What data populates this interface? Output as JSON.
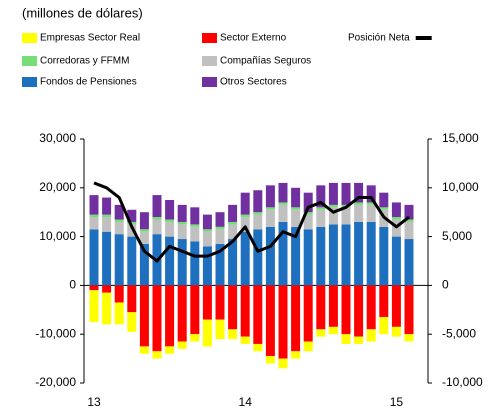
{
  "chart_data": {
    "type": "bar",
    "stacked": true,
    "subtitle": "(millones de dólares)",
    "categories": [
      "13",
      null,
      null,
      null,
      null,
      null,
      null,
      null,
      null,
      null,
      null,
      null,
      "14",
      null,
      null,
      null,
      null,
      null,
      null,
      null,
      null,
      null,
      null,
      null,
      "15",
      null
    ],
    "series": [
      {
        "name": "Empresas Sector Real",
        "color": "#ffff00",
        "values": [
          -6500,
          -6500,
          -4500,
          -4000,
          -1500,
          -1500,
          -1500,
          -1500,
          -1500,
          -5500,
          -4000,
          -2000,
          -1500,
          -1500,
          -1500,
          -2000,
          -1500,
          -2000,
          -1500,
          -1500,
          -2000,
          -1500,
          -2500,
          -3500,
          -2000,
          -1500
        ]
      },
      {
        "name": "Sector Externo",
        "color": "#ff0000",
        "values": [
          -1000,
          -1500,
          -3500,
          -5500,
          -12500,
          -13500,
          -12500,
          -11500,
          -10000,
          -7000,
          -7000,
          -9000,
          -10500,
          -12000,
          -14500,
          -15000,
          -13500,
          -11500,
          -9000,
          -8500,
          -10000,
          -10500,
          -9000,
          -6500,
          -8500,
          -10000
        ]
      },
      {
        "name": "Corredoras y FFMM",
        "color": "#77dd77",
        "values": [
          500,
          500,
          500,
          500,
          500,
          500,
          500,
          500,
          500,
          500,
          500,
          500,
          500,
          500,
          500,
          500,
          500,
          500,
          500,
          500,
          500,
          500,
          500,
          500,
          500,
          500
        ]
      },
      {
        "name": "Compañías Seguros",
        "color": "#c0c0c0",
        "values": [
          2500,
          3000,
          2500,
          2500,
          2500,
          3000,
          3000,
          3000,
          3000,
          3000,
          3000,
          3000,
          3000,
          3000,
          3500,
          3500,
          3500,
          3000,
          3500,
          3500,
          3500,
          3500,
          3500,
          3500,
          3500,
          3500
        ]
      },
      {
        "name": "Fondos de Pensiones",
        "color": "#1f6fbf",
        "values": [
          11500,
          11000,
          10500,
          10000,
          8500,
          10500,
          10000,
          9500,
          9000,
          8000,
          8500,
          9500,
          11000,
          11500,
          12000,
          13000,
          12000,
          11500,
          12000,
          12500,
          12500,
          13000,
          13000,
          12000,
          10000,
          9500
        ]
      },
      {
        "name": "Otros Sectores",
        "color": "#7030a0",
        "values": [
          4000,
          3500,
          3000,
          2500,
          3500,
          4500,
          4000,
          3500,
          3500,
          3000,
          3000,
          3500,
          4500,
          4500,
          4500,
          4000,
          4000,
          4000,
          4500,
          4500,
          4500,
          4000,
          3500,
          3000,
          3000,
          3000
        ]
      },
      {
        "name": "Posición Neta",
        "color": "#000000",
        "type": "line",
        "axis": "y2",
        "values": [
          10500,
          10000,
          9000,
          6000,
          3500,
          2500,
          4000,
          3500,
          3000,
          3000,
          3500,
          4500,
          6000,
          3500,
          4000,
          5500,
          5000,
          8000,
          8500,
          7500,
          8000,
          9000,
          9000,
          7000,
          6000,
          7000
        ]
      }
    ],
    "ylim": [
      -20000,
      30000
    ],
    "yticks": [
      {
        "value": -20000,
        "label": "-20,000"
      },
      {
        "value": -10000,
        "label": "-10,000"
      },
      0,
      {
        "value": 10000,
        "label": "10,000"
      },
      {
        "value": 20000,
        "label": "20,000"
      },
      {
        "value": 30000,
        "label": "30,000"
      }
    ],
    "y2lim": [
      -10000,
      15000
    ],
    "y2ticks": [
      {
        "value": -10000,
        "label": "-10,000"
      },
      {
        "value": -5000,
        "label": "-5,000"
      },
      0,
      {
        "value": 5000,
        "label": "5,000"
      },
      {
        "value": 10000,
        "label": "10,000"
      },
      {
        "value": 15000,
        "label": "15,000"
      }
    ]
  }
}
